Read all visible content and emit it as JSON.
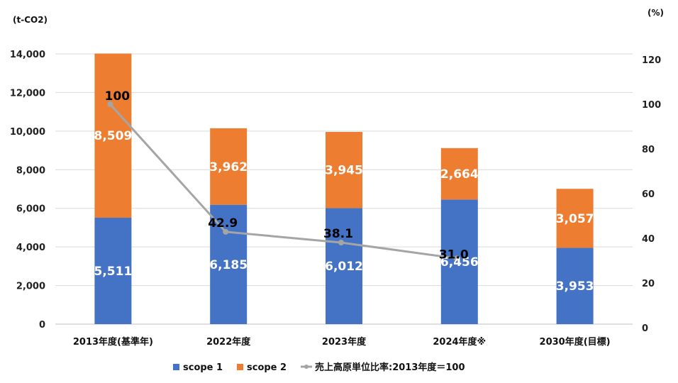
{
  "chart_data": {
    "type": "bar",
    "stacked": true,
    "categories": [
      "2013年度(基準年)",
      "2022年度",
      "2023年度",
      "2024年度※",
      "2030年度(目標)"
    ],
    "series": [
      {
        "name": "scope 1",
        "values": [
          5511,
          6185,
          6012,
          6456,
          3953
        ],
        "labels": [
          "5,511",
          "6,185",
          "6,012",
          "6,456",
          "3,953"
        ],
        "color": "#4472C4"
      },
      {
        "name": "scope 2",
        "values": [
          8509,
          3962,
          3945,
          2664,
          3057
        ],
        "labels": [
          "8,509",
          "3,962",
          "3,945",
          "2,664",
          "3,057"
        ],
        "color": "#ED7D31"
      }
    ],
    "line_series": {
      "name": "売上高原単位比率:2013年度＝100",
      "axis": "right",
      "values": [
        100,
        42.9,
        38.1,
        31.0
      ],
      "labels": [
        "100",
        "42.9",
        "38.1",
        "31.0"
      ],
      "color": "#A5A5A5"
    },
    "y_left": {
      "unit": "(t-CO2)",
      "ylim": [
        0,
        14000
      ],
      "ticks": [
        0,
        2000,
        4000,
        6000,
        8000,
        10000,
        12000,
        14000
      ],
      "tick_labels": [
        "0",
        "2,000",
        "4,000",
        "6,000",
        "8,000",
        "10,000",
        "12,000",
        "14,000"
      ]
    },
    "y_right": {
      "unit": "(%)",
      "ylim": [
        0,
        120
      ],
      "ticks": [
        0,
        20,
        40,
        60,
        80,
        100,
        120
      ],
      "tick_labels": [
        "0",
        "20",
        "40",
        "60",
        "80",
        "100",
        "120"
      ]
    },
    "grid": true,
    "legend_position": "bottom"
  }
}
